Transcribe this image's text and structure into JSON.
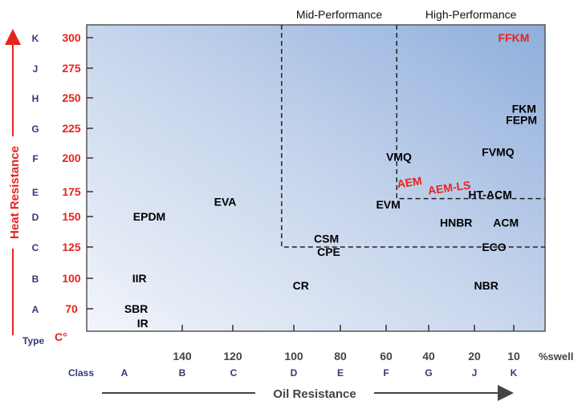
{
  "chart_data": {
    "type": "scatter",
    "title": "",
    "xlabel": "Oil Resistance",
    "ylabel": "Heat Resistance",
    "x_unit": "%swell",
    "y_unit": "C°",
    "x_reversed": true,
    "x_ticks": [
      140,
      120,
      100,
      80,
      60,
      40,
      20,
      10
    ],
    "y_ticks": [
      70,
      100,
      125,
      150,
      175,
      200,
      225,
      250,
      275,
      300
    ],
    "y_type_letters": [
      "A",
      "B",
      "C",
      "D",
      "E",
      "F",
      "G",
      "H",
      "J",
      "K"
    ],
    "x_class_letters": [
      "A",
      "B",
      "C",
      "D",
      "E",
      "F",
      "G",
      "J",
      "K"
    ],
    "type_header": "Type",
    "class_header": "Class",
    "regions": [
      {
        "label": "Mid-Performance",
        "x_max": 104,
        "y_min": 125
      },
      {
        "label": "High-Performance",
        "x_max": 55,
        "y_min": 168
      }
    ],
    "points": [
      {
        "label": "FFKM",
        "x": 10,
        "y": 300,
        "color": "#e8231e"
      },
      {
        "label": "FKM",
        "x": 6,
        "y": 241,
        "color": "#000000"
      },
      {
        "label": "FEPM",
        "x": 7,
        "y": 232,
        "color": "#000000"
      },
      {
        "label": "FVMQ",
        "x": 14,
        "y": 205,
        "color": "#000000"
      },
      {
        "label": "VMQ",
        "x": 54,
        "y": 201,
        "color": "#000000"
      },
      {
        "label": "AEM",
        "x": 49,
        "y": 182,
        "color": "#e8231e"
      },
      {
        "label": "AEM-LS",
        "x": 31,
        "y": 178,
        "color": "#e8231e"
      },
      {
        "label": "HT-ACM",
        "x": 16,
        "y": 172,
        "color": "#000000"
      },
      {
        "label": "EVA",
        "x": 123,
        "y": 165,
        "color": "#000000"
      },
      {
        "label": "EVM",
        "x": 59,
        "y": 162,
        "color": "#000000"
      },
      {
        "label": "EPDM",
        "x": 150,
        "y": 150,
        "color": "#000000"
      },
      {
        "label": "HNBR",
        "x": 28,
        "y": 145,
        "color": "#000000"
      },
      {
        "label": "ACM",
        "x": 12,
        "y": 145,
        "color": "#000000"
      },
      {
        "label": "CSM",
        "x": 86,
        "y": 132,
        "color": "#000000"
      },
      {
        "label": "CPE",
        "x": 85,
        "y": 121,
        "color": "#000000"
      },
      {
        "label": "ECO",
        "x": 15,
        "y": 125,
        "color": "#000000"
      },
      {
        "label": "IIR",
        "x": 153,
        "y": 100,
        "color": "#000000"
      },
      {
        "label": "CR",
        "x": 97,
        "y": 93,
        "color": "#000000"
      },
      {
        "label": "NBR",
        "x": 17,
        "y": 93,
        "color": "#000000"
      },
      {
        "label": "SBR",
        "x": 154,
        "y": 70,
        "color": "#000000"
      },
      {
        "label": "IR",
        "x": 152,
        "y": 58,
        "color": "#000000"
      }
    ]
  }
}
